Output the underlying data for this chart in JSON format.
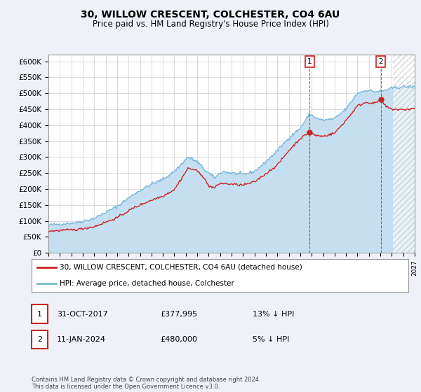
{
  "title": "30, WILLOW CRESCENT, COLCHESTER, CO4 6AU",
  "subtitle": "Price paid vs. HM Land Registry's House Price Index (HPI)",
  "footer": "Contains HM Land Registry data © Crown copyright and database right 2024.\nThis data is licensed under the Open Government Licence v3.0.",
  "legend_label_1": "30, WILLOW CRESCENT, COLCHESTER, CO4 6AU (detached house)",
  "legend_label_2": "HPI: Average price, detached house, Colchester",
  "annotation_1_date": "31-OCT-2017",
  "annotation_1_price": "£377,995",
  "annotation_1_hpi": "13% ↓ HPI",
  "annotation_2_date": "11-JAN-2024",
  "annotation_2_price": "£480,000",
  "annotation_2_hpi": "5% ↓ HPI",
  "sale_1_year": 2017.83,
  "sale_1_val": 377995,
  "sale_2_year": 2024.03,
  "sale_2_val": 480000,
  "ylim_min": 0,
  "ylim_max": 620000,
  "xlim_min": 1995,
  "xlim_max": 2027,
  "hpi_color": "#7ab8d9",
  "hpi_fill_color": "#c5dff0",
  "price_color": "#cc2222",
  "bg_color": "#eef2f8",
  "plot_bg": "#ffffff",
  "grid_color": "#cccccc",
  "annotation_box_color": "#cc2222",
  "hatch_start": 2025.0,
  "yticks": [
    0,
    50000,
    100000,
    150000,
    200000,
    250000,
    300000,
    350000,
    400000,
    450000,
    500000,
    550000,
    600000
  ]
}
